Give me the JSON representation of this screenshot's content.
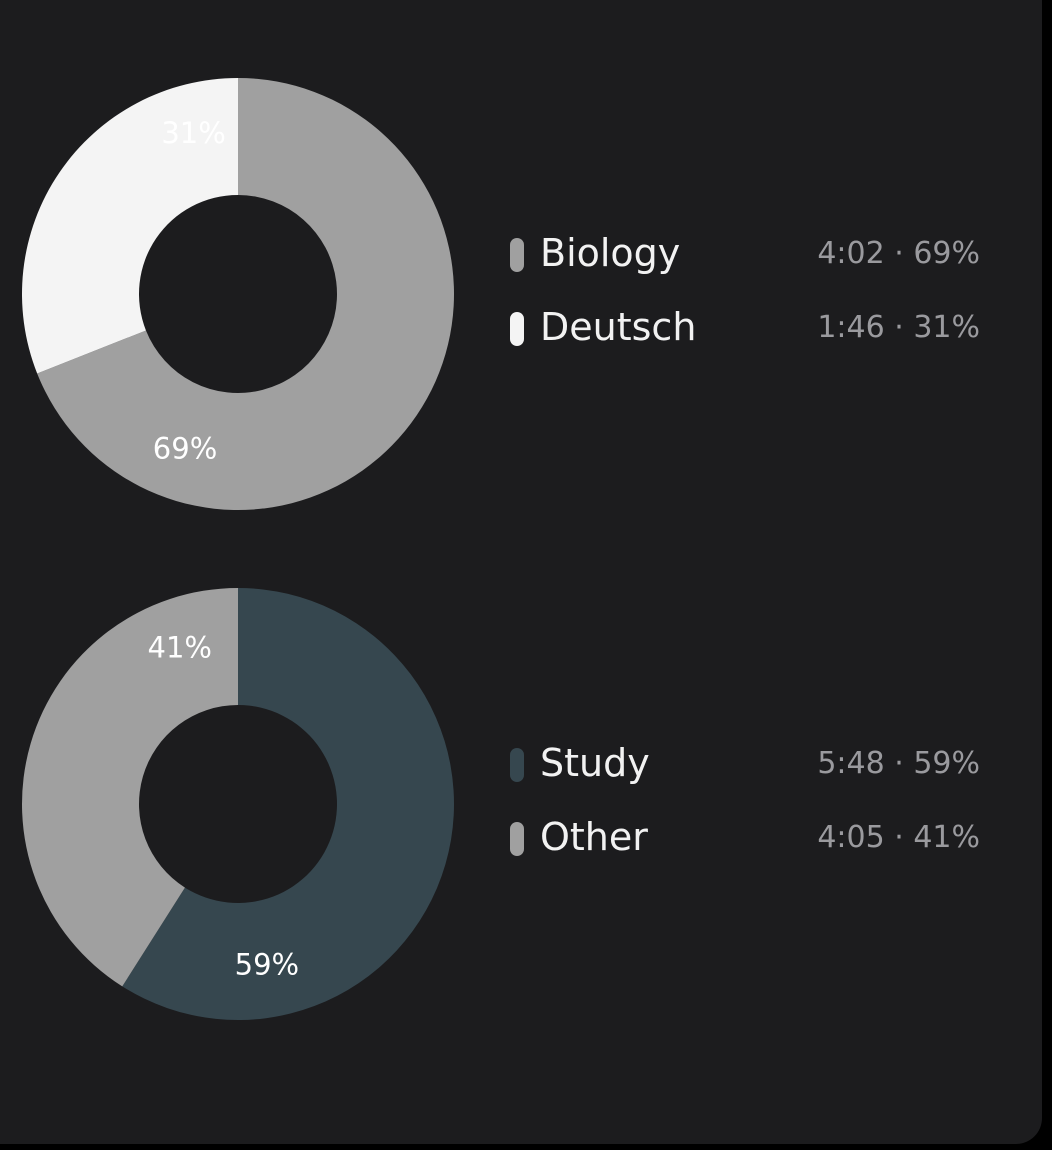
{
  "chart_data": [
    {
      "type": "pie",
      "slices": [
        {
          "label": "Biology",
          "value": 69,
          "time": "4:02",
          "value_text": "4:02 · 69%",
          "pct_label": "69%",
          "color": "#a0a0a0",
          "label_color": "#ffffff"
        },
        {
          "label": "Deutsch",
          "value": 31,
          "time": "1:46",
          "value_text": "1:46 · 31%",
          "pct_label": "31%",
          "color": "#f4f4f4",
          "label_color": "#ffffff"
        }
      ]
    },
    {
      "type": "pie",
      "slices": [
        {
          "label": "Study",
          "value": 59,
          "time": "5:48",
          "value_text": "5:48 · 59%",
          "pct_label": "59%",
          "color": "#36474f",
          "label_color": "#ffffff"
        },
        {
          "label": "Other",
          "value": 41,
          "time": "4:05",
          "value_text": "4:05 · 41%",
          "pct_label": "41%",
          "color": "#a0a0a0",
          "label_color": "#ffffff"
        }
      ]
    }
  ],
  "theme": {
    "background": "#1c1c1e",
    "legend_text": "#f2f2f2",
    "legend_value_text": "#9a9a9e"
  }
}
